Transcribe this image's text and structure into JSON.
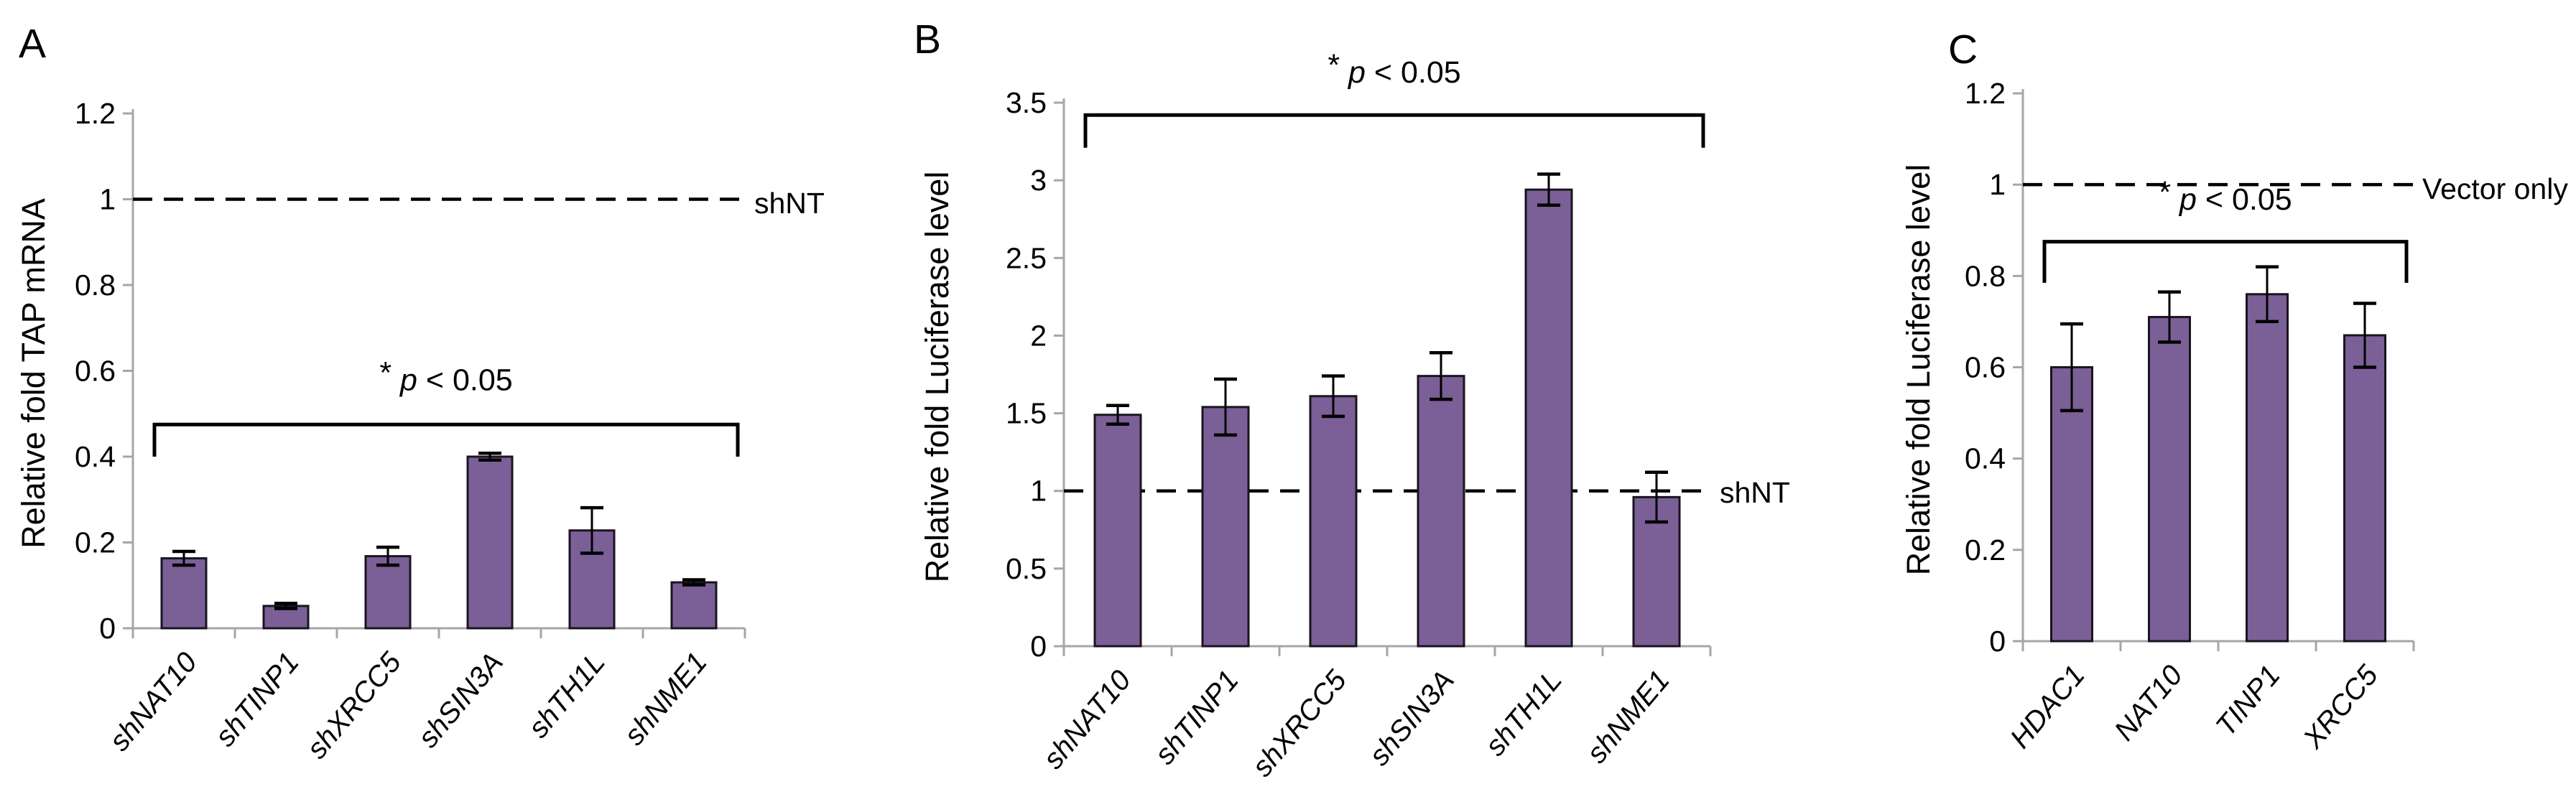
{
  "style": {
    "bar_fill": "#7A6096",
    "bar_stroke": "#1B1320",
    "axis_color": "#A6A6A6",
    "annotation_color": "#000000",
    "background": "#FFFFFF"
  },
  "chart_data": [
    {
      "type": "bar",
      "panel_label": "A",
      "title": "",
      "xlabel": "",
      "ylabel": "Relative fold TAP mRNA",
      "ylim": [
        0,
        1.2
      ],
      "ytick_step": 0.2,
      "ytick_labels": [
        "0",
        "0.2",
        "0.4",
        "0.6",
        "0.8",
        "1",
        "1.2"
      ],
      "grid": false,
      "categories": [
        "shNAT10",
        "shTINP1",
        "shXRCC5",
        "shSIN3A",
        "shTH1L",
        "shNME1"
      ],
      "values": [
        0.163,
        0.052,
        0.168,
        0.4,
        0.228,
        0.107
      ],
      "errors": [
        0.016,
        0.006,
        0.021,
        0.008,
        0.053,
        0.006
      ],
      "ref_line": {
        "value": 1,
        "label": "shNT"
      },
      "significance": {
        "text": "* p < 0.05",
        "bracket_value": 0.475,
        "bracket_drop_value": 0.4,
        "text_value": 0.555
      }
    },
    {
      "type": "bar",
      "panel_label": "B",
      "title": "",
      "xlabel": "",
      "ylabel": "Relative fold Luciferase level",
      "ylim": [
        0,
        3.5
      ],
      "ytick_step": 0.5,
      "ytick_labels": [
        "0",
        "0.5",
        "1",
        "1.5",
        "2",
        "2.5",
        "3",
        "3.5"
      ],
      "grid": false,
      "categories": [
        "shNAT10",
        "shTINP1",
        "shXRCC5",
        "shSIN3A",
        "shTH1L",
        "shNME1"
      ],
      "values": [
        1.49,
        1.54,
        1.61,
        1.74,
        2.94,
        0.96
      ],
      "errors": [
        0.06,
        0.18,
        0.13,
        0.15,
        0.1,
        0.16
      ],
      "ref_line": {
        "value": 1,
        "label": "shNT"
      },
      "significance": {
        "text": "* p < 0.05",
        "bracket_value": 3.42,
        "bracket_drop_value": 3.21,
        "text_value": 3.63
      }
    },
    {
      "type": "bar",
      "panel_label": "C",
      "title": "",
      "xlabel": "",
      "ylabel": "Relative fold Luciferase level",
      "ylim": [
        0,
        1.2
      ],
      "ytick_step": 0.2,
      "ytick_labels": [
        "0",
        "0.2",
        "0.4",
        "0.6",
        "0.8",
        "1",
        "1.2"
      ],
      "grid": false,
      "categories": [
        "HDAC1",
        "NAT10",
        "TINP1",
        "XRCC5"
      ],
      "values": [
        0.6,
        0.71,
        0.76,
        0.67
      ],
      "errors": [
        0.095,
        0.055,
        0.06,
        0.07
      ],
      "ref_line": {
        "value": 1,
        "label": "Vector only"
      },
      "significance": {
        "text": "* p < 0.05",
        "bracket_value": 0.875,
        "bracket_drop_value": 0.785,
        "text_value": 0.945
      }
    }
  ]
}
